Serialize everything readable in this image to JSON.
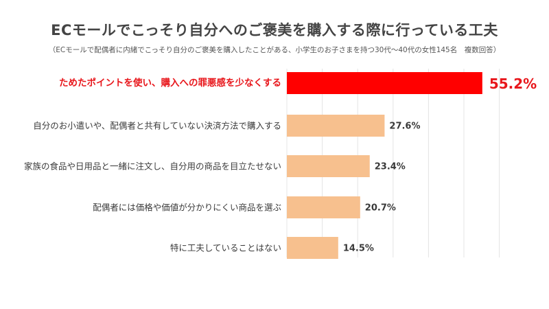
{
  "title": "ECモールでこっそり自分へのご褒美を購入する際に行っている工夫",
  "subtitle": "（ECモールで配偶者に内緒でこっそり自分のご褒美を購入したことがある、小学生のお子さまを持つ30代〜40代の女性145名　複数回答）",
  "chart_data": {
    "type": "bar",
    "orientation": "horizontal",
    "categories": [
      "ためたポイントを使い、購入への罪悪感を少なくする",
      "自分のお小遣いや、配偶者と共有していない決済方法で購入する",
      "家族の食品や日用品と一緒に注文し、自分用の商品を目立たせない",
      "配偶者には価格や価値が分かりにくい商品を選ぶ",
      "特に工夫していることはない"
    ],
    "values": [
      55.2,
      27.6,
      23.4,
      20.7,
      14.5
    ],
    "value_labels": [
      "55.2%",
      "27.6%",
      "23.4%",
      "20.7%",
      "14.5%"
    ],
    "unit": "%",
    "xlim": [
      0,
      60
    ],
    "grid": true,
    "highlight_index": 0,
    "colors": {
      "highlight_bar": "#ff0000",
      "highlight_text": "#e8161b",
      "bar": "#f7c08e",
      "grid": "#e4e4e4",
      "label_text": "#3a3a3a"
    }
  }
}
